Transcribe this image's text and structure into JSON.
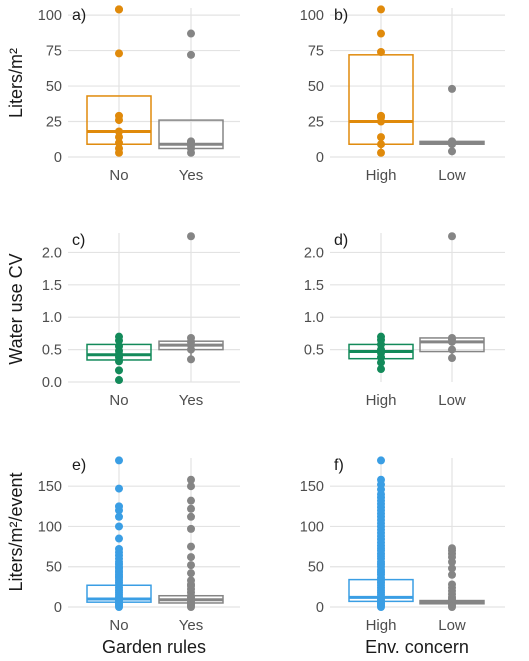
{
  "figure": {
    "row_ylabels": [
      "Liters/m²",
      "Water use CV",
      "Liters/m²/event"
    ],
    "col_xlabels": [
      "Garden rules",
      "Env. concern"
    ]
  },
  "colors": {
    "orange": "#e08a0b",
    "green": "#138a5a",
    "blue": "#3a9ee4",
    "gray": "#858585",
    "grid": "#e3e3e3",
    "text": "#1a1a1a",
    "axis_text": "#4d4d4d"
  },
  "chart_data": [
    {
      "panel": "a)",
      "type": "box",
      "ylim": [
        0,
        105
      ],
      "yticks": [
        0,
        25,
        50,
        75,
        100
      ],
      "categories": [
        "No",
        "Yes"
      ],
      "boxes": [
        {
          "color": "orange",
          "q1": 9,
          "median": 18,
          "q3": 43,
          "whisker_low": 3,
          "whisker_high": 43,
          "points": [
            3,
            6,
            10,
            14,
            18,
            26,
            29,
            73,
            104,
            104
          ]
        },
        {
          "color": "gray",
          "q1": 6,
          "median": 9,
          "q3": 26,
          "whisker_low": 3,
          "whisker_high": 26,
          "points": [
            3,
            6,
            8,
            10,
            11,
            72,
            87
          ]
        }
      ]
    },
    {
      "panel": "b)",
      "type": "box",
      "ylim": [
        0,
        105
      ],
      "yticks": [
        0,
        25,
        50,
        75,
        100
      ],
      "categories": [
        "High",
        "Low"
      ],
      "boxes": [
        {
          "color": "orange",
          "q1": 9,
          "median": 25,
          "q3": 72,
          "whisker_low": 3,
          "whisker_high": 72,
          "points": [
            3,
            9,
            14,
            25,
            28,
            29,
            74,
            87,
            104
          ]
        },
        {
          "color": "gray",
          "q1": 9,
          "median": 10,
          "q3": 11,
          "whisker_low": 4,
          "whisker_high": 11,
          "points": [
            4,
            9,
            10,
            11,
            48
          ]
        }
      ]
    },
    {
      "panel": "c)",
      "type": "box",
      "ylim": [
        0,
        2.3
      ],
      "yticks": [
        0.0,
        0.5,
        1.0,
        1.5,
        2.0
      ],
      "categories": [
        "No",
        "Yes"
      ],
      "boxes": [
        {
          "color": "green",
          "q1": 0.34,
          "median": 0.42,
          "q3": 0.58,
          "whisker_low": 0.3,
          "whisker_high": 0.58,
          "points": [
            0.03,
            0.18,
            0.32,
            0.38,
            0.43,
            0.48,
            0.55,
            0.64,
            0.7
          ]
        },
        {
          "color": "gray",
          "q1": 0.5,
          "median": 0.57,
          "q3": 0.63,
          "whisker_low": 0.35,
          "whisker_high": 0.68,
          "points": [
            0.35,
            0.5,
            0.57,
            0.62,
            0.68,
            2.25
          ]
        }
      ]
    },
    {
      "panel": "d)",
      "type": "box",
      "ylim": [
        0,
        2.3
      ],
      "yticks": [
        0.5,
        1.0,
        1.5,
        2.0
      ],
      "categories": [
        "High",
        "Low"
      ],
      "boxes": [
        {
          "color": "green",
          "q1": 0.36,
          "median": 0.47,
          "q3": 0.58,
          "whisker_low": 0.2,
          "whisker_high": 0.7,
          "points": [
            0.2,
            0.3,
            0.38,
            0.45,
            0.5,
            0.58,
            0.65,
            0.7
          ]
        },
        {
          "color": "gray",
          "q1": 0.47,
          "median": 0.62,
          "q3": 0.68,
          "whisker_low": 0.37,
          "whisker_high": 0.68,
          "points": [
            0.37,
            0.5,
            0.62,
            0.66,
            0.68,
            2.25
          ]
        }
      ]
    },
    {
      "panel": "e)",
      "type": "box",
      "ylim": [
        0,
        185
      ],
      "yticks": [
        0,
        50,
        100,
        150
      ],
      "categories": [
        "No",
        "Yes"
      ],
      "boxes": [
        {
          "color": "blue",
          "q1": 6,
          "median": 10,
          "q3": 27,
          "whisker_low": 0,
          "whisker_high": 60,
          "points": [
            0,
            2,
            4,
            6,
            8,
            10,
            12,
            15,
            18,
            21,
            24,
            27,
            30,
            33,
            36,
            38,
            40,
            43,
            45,
            48,
            50,
            53,
            56,
            60,
            64,
            68,
            72,
            85,
            100,
            112,
            120,
            125,
            147,
            182
          ]
        },
        {
          "color": "gray",
          "q1": 5,
          "median": 9,
          "q3": 14,
          "whisker_low": 0,
          "whisker_high": 28,
          "points": [
            0,
            2,
            4,
            6,
            8,
            10,
            12,
            14,
            18,
            22,
            26,
            28,
            33,
            42,
            52,
            62,
            75,
            97,
            112,
            122,
            132,
            150,
            158
          ]
        }
      ]
    },
    {
      "panel": "f)",
      "type": "box",
      "ylim": [
        0,
        185
      ],
      "yticks": [
        0,
        50,
        100,
        150
      ],
      "categories": [
        "High",
        "Low"
      ],
      "boxes": [
        {
          "color": "blue",
          "q1": 7,
          "median": 12,
          "q3": 34,
          "whisker_low": 0,
          "whisker_high": 80,
          "points": [
            0,
            2,
            4,
            6,
            8,
            10,
            12,
            15,
            18,
            21,
            24,
            27,
            30,
            33,
            36,
            40,
            43,
            46,
            50,
            53,
            56,
            60,
            63,
            66,
            70,
            73,
            76,
            80,
            84,
            88,
            92,
            96,
            100,
            104,
            108,
            112,
            116,
            120,
            124,
            128,
            132,
            136,
            140,
            146,
            152,
            158,
            182
          ]
        },
        {
          "color": "gray",
          "q1": 4,
          "median": 6,
          "q3": 8,
          "whisker_low": 0,
          "whisker_high": 12,
          "points": [
            0,
            2,
            4,
            6,
            8,
            10,
            12,
            16,
            20,
            24,
            28,
            40,
            48,
            56,
            62,
            66,
            70,
            73
          ]
        }
      ]
    }
  ]
}
